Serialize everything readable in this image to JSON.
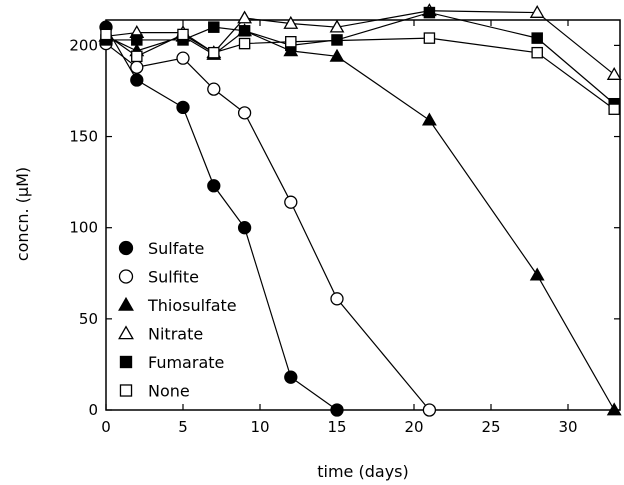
{
  "chart_data": {
    "type": "scatter",
    "xlabel": "time (days)",
    "ylabel": "concn. (μM)",
    "xlim": [
      0,
      33
    ],
    "ylim": [
      0,
      220
    ],
    "xticks": [
      0,
      5,
      10,
      15,
      20,
      25,
      30
    ],
    "yticks": [
      0,
      50,
      100,
      150,
      200
    ],
    "grid": false,
    "legend_position": "lower-left",
    "series": [
      {
        "name": "Sulfate",
        "marker": "circle",
        "filled": true,
        "x": [
          0,
          2,
          5,
          7,
          9,
          12,
          15
        ],
        "y": [
          210,
          181,
          166,
          123,
          100,
          18,
          0
        ]
      },
      {
        "name": "Sulfite",
        "marker": "circle",
        "filled": false,
        "x": [
          0,
          2,
          5,
          7,
          9,
          12,
          15,
          21
        ],
        "y": [
          201,
          188,
          193,
          176,
          163,
          114,
          61,
          0
        ]
      },
      {
        "name": "Thiosulfate",
        "marker": "triangle",
        "filled": true,
        "x": [
          0,
          2,
          5,
          7,
          9,
          12,
          15,
          21,
          28,
          33
        ],
        "y": [
          205,
          197,
          205,
          195,
          208,
          197,
          194,
          159,
          74,
          0
        ]
      },
      {
        "name": "Nitrate",
        "marker": "triangle",
        "filled": false,
        "x": [
          0,
          2,
          5,
          7,
          9,
          12,
          15,
          21,
          28,
          33
        ],
        "y": [
          205,
          207,
          207,
          196,
          215,
          212,
          210,
          219,
          218,
          184
        ]
      },
      {
        "name": "Fumarate",
        "marker": "square",
        "filled": true,
        "x": [
          0,
          2,
          5,
          7,
          9,
          12,
          15,
          21,
          28,
          33
        ],
        "y": [
          203,
          203,
          203,
          210,
          208,
          200,
          203,
          218,
          204,
          168
        ]
      },
      {
        "name": "None",
        "marker": "square",
        "filled": false,
        "x": [
          0,
          2,
          5,
          7,
          9,
          12,
          21,
          28,
          33
        ],
        "y": [
          206,
          194,
          206,
          196,
          201,
          202,
          204,
          196,
          165
        ]
      }
    ]
  }
}
